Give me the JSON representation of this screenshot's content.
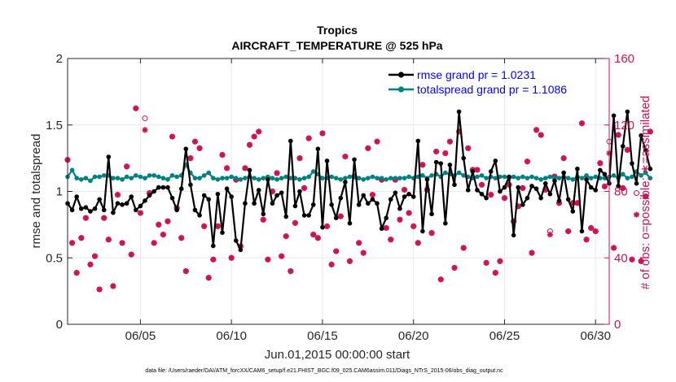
{
  "chart_data": {
    "type": "line",
    "title": "Tropics",
    "subtitle": "AIRCRAFT_TEMPERATURE @ 525 hPa",
    "xlabel": "Jun.01,2015 00:00:00 start",
    "ylabel_left": "rmse and totalspread",
    "ylabel_right": "# of obs: o=possible; ∗=assimilated",
    "footnote": "data file: /Users/raeder/DAI/ATM_forcXX/CAM6_setup/f.e21.FHIST_BGC.f09_025.CAM6assim.011/Diags_NTrS_2015-06/obs_diag_output.nc",
    "x_unit": "day of June 2015 (fractional)",
    "xlim": [
      1.0,
      30.75
    ],
    "ylim_left": [
      0,
      2
    ],
    "ylim_right": [
      0,
      160
    ],
    "xticks": [
      5,
      10,
      15,
      20,
      25,
      30
    ],
    "xtick_labels": [
      "06/05",
      "06/10",
      "06/15",
      "06/20",
      "06/25",
      "06/30"
    ],
    "yticks_left": [
      0,
      0.5,
      1,
      1.5,
      2
    ],
    "yticks_left_labels": [
      "0",
      "0.5",
      "1",
      "1.5",
      "2"
    ],
    "yticks_right": [
      0,
      40,
      80,
      120,
      160
    ],
    "yticks_right_labels": [
      "0",
      "40",
      "80",
      "120",
      "160"
    ],
    "colors": {
      "rmse": "#000000",
      "spread": "#008080",
      "obs": "#cc1155",
      "right_axis": "#cc1155",
      "legend_text": "#0000ff",
      "grid": "#e9e9e9"
    },
    "series": [
      {
        "name": "rmse grand pr = 1.0231",
        "axis": "left",
        "x_start": 1.0,
        "x_step": 0.25,
        "values": [
          0.91,
          0.86,
          0.96,
          0.87,
          0.88,
          0.85,
          0.87,
          0.94,
          0.86,
          1.26,
          0.84,
          0.91,
          0.9,
          0.91,
          0.96,
          0.86,
          0.89,
          0.93,
          0.97,
          1.0,
          1.03,
          1.03,
          1.03,
          0.95,
          0.86,
          1.02,
          1.32,
          1.05,
          0.86,
          0.82,
          0.97,
          0.94,
          0.59,
          0.98,
          0.69,
          1.02,
          0.96,
          0.63,
          0.56,
          0.91,
          1.16,
          0.91,
          1.01,
          0.83,
          1.09,
          0.91,
          0.97,
          0.99,
          0.81,
          1.38,
          0.89,
          1.0,
          0.82,
          0.82,
          0.9,
          1.32,
          0.73,
          1.23,
          0.9,
          0.8,
          0.95,
          1.07,
          0.76,
          1.24,
          0.9,
          0.97,
          0.91,
          0.94,
          0.91,
          0.72,
          0.8,
          0.94,
          0.99,
          0.87,
          0.96,
          0.98,
          0.96,
          1.38,
          0.7,
          1.09,
          0.83,
          1.22,
          1.21,
          0.76,
          1.2,
          1.05,
          1.6,
          1.25,
          1.01,
          1.15,
          1.01,
          0.98,
          0.95,
          1.15,
          1.23,
          1.0,
          1.03,
          1.11,
          0.67,
          1.03,
          0.9,
          0.95,
          1.04,
          1.02,
          0.95,
          1.06,
          0.98,
          1.08,
          0.93,
          1.14,
          0.94,
          0.85,
          1.17,
          0.7,
          1.09,
          1.03,
          1.01,
          1.16,
          1.13,
          1.06,
          1.57,
          1.04,
          1.34,
          1.6,
          1.21,
          1.06,
          1.42,
          1.31,
          1.17
        ]
      },
      {
        "name": "totalspread grand pr = 1.1086",
        "axis": "left",
        "x_start": 1.0,
        "x_step": 0.25,
        "values": [
          1.11,
          1.16,
          1.1,
          1.09,
          1.1,
          1.08,
          1.11,
          1.11,
          1.12,
          1.12,
          1.1,
          1.1,
          1.09,
          1.11,
          1.1,
          1.12,
          1.11,
          1.1,
          1.12,
          1.12,
          1.11,
          1.1,
          1.09,
          1.12,
          1.11,
          1.12,
          1.2,
          1.14,
          1.1,
          1.1,
          1.12,
          1.14,
          1.1,
          1.09,
          1.1,
          1.1,
          1.11,
          1.1,
          1.09,
          1.1,
          1.11,
          1.1,
          1.09,
          1.1,
          1.11,
          1.1,
          1.09,
          1.1,
          1.11,
          1.1,
          1.1,
          1.09,
          1.1,
          1.11,
          1.15,
          1.13,
          1.1,
          1.1,
          1.11,
          1.1,
          1.09,
          1.1,
          1.11,
          1.11,
          1.1,
          1.09,
          1.1,
          1.11,
          1.1,
          1.1,
          1.09,
          1.1,
          1.1,
          1.1,
          1.1,
          1.11,
          1.1,
          1.11,
          1.12,
          1.1,
          1.12,
          1.13,
          1.11,
          1.14,
          1.13,
          1.12,
          1.14,
          1.12,
          1.11,
          1.1,
          1.11,
          1.12,
          1.1,
          1.11,
          1.1,
          1.11,
          1.11,
          1.1,
          1.11,
          1.1,
          1.11,
          1.1,
          1.11,
          1.1,
          1.09,
          1.1,
          1.11,
          1.1,
          1.1,
          1.11,
          1.1,
          1.09,
          1.11,
          1.1,
          1.12,
          1.1,
          1.11,
          1.1,
          1.1,
          1.11,
          1.12,
          1.1,
          1.13,
          1.1,
          1.11,
          1.15,
          1.12,
          1.14,
          1.1
        ]
      },
      {
        "name": "# of obs assimilated",
        "axis": "right",
        "x_start": 1.0,
        "x_step": 0.25,
        "values": [
          99,
          49,
          31,
          52,
          64,
          36,
          41,
          21,
          64,
          51,
          23,
          78,
          49,
          95,
          42,
          130,
          67,
          117,
          79,
          49,
          60,
          54,
          62,
          113,
          70,
          52,
          32,
          100,
          110,
          106,
          59,
          28,
          39,
          59,
          102,
          94,
          40,
          87,
          47,
          94,
          108,
          113,
          116,
          63,
          39,
          80,
          91,
          41,
          53,
          32,
          61,
          100,
          82,
          112,
          54,
          52,
          115,
          59,
          36,
          44,
          65,
          101,
          38,
          89,
          49,
          43,
          106,
          78,
          110,
          87,
          58,
          51,
          87,
          63,
          81,
          67,
          59,
          49,
          96,
          81,
          55,
          104,
          27,
          103,
          110,
          34,
          116,
          46,
          106,
          93,
          93,
          84,
          37,
          78,
          31,
          38,
          76,
          84,
          62,
          71,
          82,
          98,
          43,
          117,
          114,
          81,
          54,
          89,
          73,
          100,
          56,
          73,
          73,
          121,
          51,
          58,
          56,
          97,
          83,
          103,
          46,
          114,
          82,
          105,
          39,
          66,
          38,
          77,
          116
        ]
      },
      {
        "name": "# of obs possible",
        "axis": "right",
        "x_start": 1.0,
        "x_step": 0.25,
        "values": [
          99,
          49,
          31,
          52,
          64,
          36,
          41,
          21,
          64,
          51,
          23,
          78,
          49,
          95,
          42,
          130,
          67,
          124,
          79,
          49,
          60,
          54,
          62,
          113,
          70,
          52,
          32,
          100,
          110,
          106,
          59,
          28,
          39,
          59,
          102,
          94,
          40,
          87,
          47,
          94,
          108,
          113,
          116,
          63,
          39,
          80,
          91,
          41,
          53,
          32,
          61,
          100,
          82,
          112,
          54,
          52,
          115,
          59,
          36,
          44,
          65,
          101,
          38,
          89,
          49,
          43,
          106,
          78,
          110,
          87,
          58,
          51,
          87,
          63,
          81,
          67,
          59,
          49,
          96,
          81,
          55,
          104,
          27,
          103,
          110,
          34,
          116,
          46,
          106,
          93,
          93,
          84,
          37,
          78,
          31,
          38,
          76,
          84,
          62,
          71,
          82,
          98,
          43,
          117,
          114,
          81,
          56,
          89,
          73,
          100,
          56,
          73,
          73,
          121,
          51,
          58,
          56,
          97,
          83,
          110,
          46,
          114,
          82,
          105,
          39,
          79,
          38,
          77,
          116
        ]
      }
    ]
  }
}
